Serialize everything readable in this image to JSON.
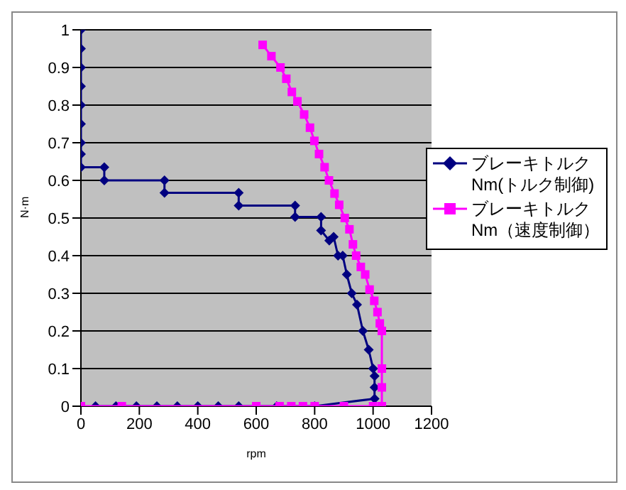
{
  "chart_data": {
    "type": "line",
    "xlabel": "rpm",
    "ylabel": "N·m",
    "xlim": [
      0,
      1200
    ],
    "xticks": [
      0,
      200,
      400,
      600,
      800,
      1000,
      1200
    ],
    "ylim": [
      0,
      1
    ],
    "yticks": [
      0,
      0.1,
      0.2,
      0.3,
      0.4,
      0.5,
      0.6,
      0.7,
      0.8,
      0.9,
      1
    ],
    "grid": "y",
    "legend": "right",
    "line_style": "solid",
    "series": [
      {
        "name": "ブレーキトルクNm(トルク制御)",
        "color": "#000080",
        "marker": "diamond",
        "x": [
          0,
          0,
          0,
          0,
          0,
          0,
          0,
          0,
          0,
          80,
          80,
          286,
          286,
          540,
          540,
          733,
          733,
          822,
          822,
          850,
          865,
          880,
          896,
          910,
          927,
          945,
          965,
          985,
          1000,
          1005,
          1005,
          1005,
          800,
          670,
          540,
          470,
          400,
          330,
          260,
          190,
          120,
          50
        ],
        "values": [
          1,
          0.95,
          0.9,
          0.85,
          0.8,
          0.75,
          0.7,
          0.67,
          0.635,
          0.635,
          0.6,
          0.6,
          0.567,
          0.567,
          0.533,
          0.533,
          0.503,
          0.503,
          0.467,
          0.44,
          0.45,
          0.4,
          0.4,
          0.35,
          0.3,
          0.27,
          0.2,
          0.15,
          0.1,
          0.08,
          0.05,
          0.02,
          0,
          0,
          0,
          0,
          0,
          0,
          0,
          0,
          0,
          0
        ]
      },
      {
        "name": "ブレーキトルクNm（速度制御）",
        "color": "#ff00ff",
        "marker": "square",
        "x": [
          0,
          140,
          600,
          680,
          720,
          760,
          800,
          900,
          1000,
          1030,
          1030,
          1030,
          1030,
          1023,
          1015,
          1004,
          988,
          973,
          958,
          942,
          931,
          919,
          903,
          884,
          868,
          849,
          834,
          815,
          799,
          784,
          764,
          741,
          722,
          703,
          683,
          652,
          622
        ],
        "values": [
          0,
          0,
          0,
          0,
          0,
          0,
          0,
          0,
          0,
          0,
          0.05,
          0.1,
          0.2,
          0.22,
          0.25,
          0.28,
          0.31,
          0.35,
          0.37,
          0.4,
          0.43,
          0.47,
          0.5,
          0.535,
          0.565,
          0.6,
          0.635,
          0.67,
          0.705,
          0.74,
          0.775,
          0.81,
          0.835,
          0.87,
          0.9,
          0.93,
          0.96
        ]
      }
    ]
  }
}
